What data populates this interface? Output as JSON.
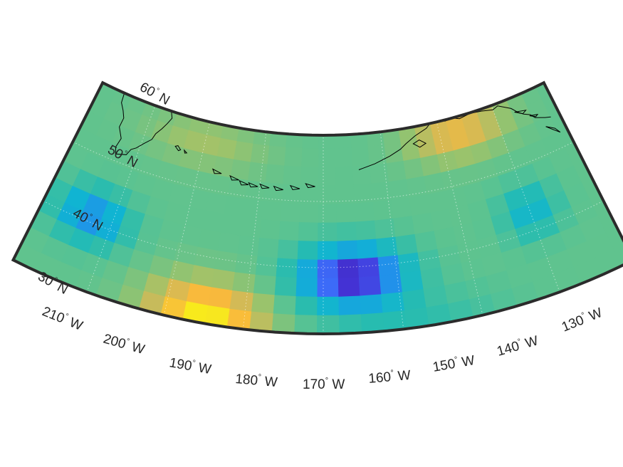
{
  "map": {
    "projection": "conic",
    "lat_range": [
      30,
      60
    ],
    "lon_range": [
      -210,
      -130
    ],
    "grid": true,
    "frame": true,
    "colormap": "parula",
    "colormap_stops": [
      "#3e26a8",
      "#4433d8",
      "#3c6cf8",
      "#1e96e8",
      "#10b4d2",
      "#27bcb0",
      "#5dc390",
      "#9cc36b",
      "#d0ba58",
      "#f9b93c",
      "#f6d92b",
      "#f9fb0e"
    ],
    "field_description": "gridded scalar field, low centred near 40N 166W, highs near 30N 185W and 58N 147W",
    "coastline_color": "#000000"
  },
  "lat_labels": [
    {
      "deg": "30",
      "hemi": "N"
    },
    {
      "deg": "40",
      "hemi": "N"
    },
    {
      "deg": "50",
      "hemi": "N"
    },
    {
      "deg": "60",
      "hemi": "N"
    }
  ],
  "lon_labels": [
    {
      "deg": "210",
      "hemi": "W"
    },
    {
      "deg": "200",
      "hemi": "W"
    },
    {
      "deg": "190",
      "hemi": "W"
    },
    {
      "deg": "180",
      "hemi": "W"
    },
    {
      "deg": "170",
      "hemi": "W"
    },
    {
      "deg": "160",
      "hemi": "W"
    },
    {
      "deg": "150",
      "hemi": "W"
    },
    {
      "deg": "140",
      "hemi": "W"
    },
    {
      "deg": "130",
      "hemi": "W"
    }
  ],
  "degree_symbol": "°"
}
